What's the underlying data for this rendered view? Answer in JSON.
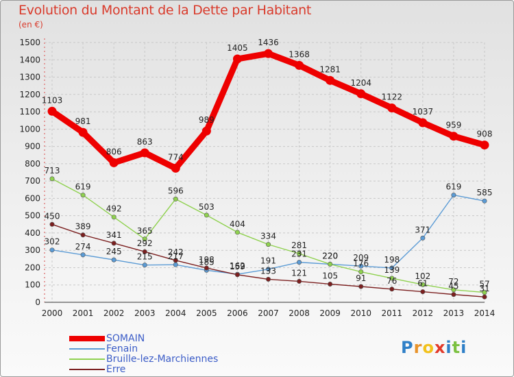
{
  "header": {
    "title": "Evolution du Montant de la Dette par Habitant",
    "subtitle": "(en €)"
  },
  "logo": {
    "text": "Proxiti",
    "colors": [
      "#2e7fc7",
      "#e8932a",
      "#f2c21c",
      "#e23a2a",
      "#2e7fc7",
      "#7cc142",
      "#2e7fc7"
    ]
  },
  "chart_data": {
    "type": "line",
    "title": "Evolution du Montant de la Dette par Habitant",
    "ylabel": "(en €)",
    "ylim": [
      0,
      1500
    ],
    "yticks": [
      0,
      100,
      200,
      300,
      400,
      500,
      600,
      700,
      800,
      900,
      1000,
      1100,
      1200,
      1300,
      1400,
      1500
    ],
    "grid": true,
    "legend_position": "bottom-left",
    "x": [
      "2000",
      "2001",
      "2002",
      "2003",
      "2004",
      "2005",
      "2006",
      "2007",
      "2008",
      "2009",
      "2010",
      "2011",
      "2012",
      "2013",
      "2014"
    ],
    "series": [
      {
        "name": "SOMAIN",
        "color": "#ee0000",
        "values": [
          1103,
          981,
          806,
          863,
          774,
          989,
          1405,
          1436,
          1368,
          1281,
          1204,
          1122,
          1037,
          959,
          908
        ]
      },
      {
        "name": "Fenain",
        "color": "#5b9bd5",
        "values": [
          302,
          274,
          245,
          215,
          217,
          185,
          162,
          191,
          231,
          220,
          209,
          198,
          371,
          619,
          585
        ]
      },
      {
        "name": "Bruille-lez-Marchiennes",
        "color": "#8fd14f",
        "values": [
          713,
          619,
          492,
          365,
          596,
          503,
          404,
          334,
          281,
          220,
          176,
          139,
          102,
          72,
          57
        ]
      },
      {
        "name": "Erre",
        "color": "#7b1f1f",
        "values": [
          450,
          389,
          341,
          292,
          242,
          198,
          159,
          133,
          121,
          105,
          91,
          76,
          61,
          45,
          31
        ]
      }
    ]
  }
}
